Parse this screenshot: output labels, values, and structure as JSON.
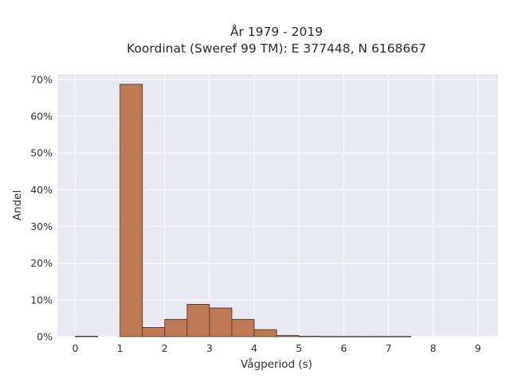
{
  "chart_data": {
    "type": "bar",
    "title_line1": "År 1979 - 2019",
    "title_line2": "Koordinat (Sweref 99 TM): E 377448, N 6168667",
    "xlabel": "Vågperiod (s)",
    "ylabel": "Andel",
    "xlim": [
      -0.4,
      9.45
    ],
    "ylim": [
      0,
      71.5
    ],
    "x_ticks": [
      "0",
      "1",
      "2",
      "3",
      "4",
      "5",
      "6",
      "7",
      "8",
      "9"
    ],
    "y_ticks": [
      "0%",
      "10%",
      "20%",
      "30%",
      "40%",
      "50%",
      "60%",
      "70%"
    ],
    "bin_width": 0.5,
    "bins": [
      {
        "x0": 0.0,
        "value": 0.1
      },
      {
        "x0": 1.0,
        "value": 68.7
      },
      {
        "x0": 1.5,
        "value": 2.5
      },
      {
        "x0": 2.0,
        "value": 4.7
      },
      {
        "x0": 2.5,
        "value": 8.8
      },
      {
        "x0": 3.0,
        "value": 7.8
      },
      {
        "x0": 3.5,
        "value": 4.7
      },
      {
        "x0": 4.0,
        "value": 1.9
      },
      {
        "x0": 4.5,
        "value": 0.3
      },
      {
        "x0": 5.0,
        "value": 0.1
      },
      {
        "x0": 5.5,
        "value": 0.05
      },
      {
        "x0": 6.0,
        "value": 0.05
      },
      {
        "x0": 6.5,
        "value": 0.05
      },
      {
        "x0": 7.0,
        "value": 0.05
      }
    ],
    "grid": true,
    "colors": {
      "bar_fill": "#bd7a55",
      "bar_stroke": "#4a3020",
      "plot_background": "#e8e9f2",
      "grid": "#ffffff"
    }
  }
}
